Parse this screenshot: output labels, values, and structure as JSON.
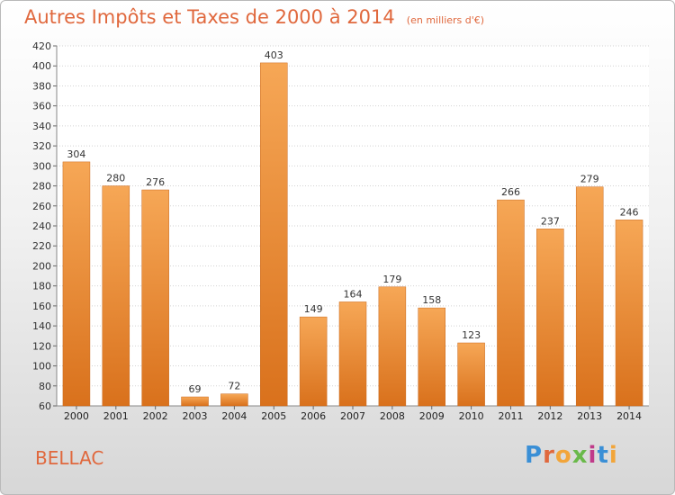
{
  "title": "Autres Impôts et Taxes de 2000 à 2014",
  "subtitle": "(en milliers d'€)",
  "place": "BELLAC",
  "logo": {
    "letters": [
      "P",
      "r",
      "o",
      "x",
      "i",
      "t",
      "i"
    ],
    "colors": [
      "#3a8fd6",
      "#e0683d",
      "#f2a53a",
      "#6ab94a",
      "#c03a8a",
      "#3a8fd6",
      "#f2a53a"
    ]
  },
  "colors": {
    "bar": "#ef8a2e",
    "title": "#e0683d"
  },
  "chart_data": {
    "type": "bar",
    "categories": [
      "2000",
      "2001",
      "2002",
      "2003",
      "2004",
      "2005",
      "2006",
      "2007",
      "2008",
      "2009",
      "2010",
      "2011",
      "2012",
      "2013",
      "2014"
    ],
    "values": [
      304,
      280,
      276,
      69,
      72,
      403,
      149,
      164,
      179,
      158,
      123,
      266,
      237,
      279,
      246
    ],
    "ylim": [
      60,
      420
    ],
    "yticks": [
      60,
      80,
      100,
      120,
      140,
      160,
      180,
      200,
      220,
      240,
      260,
      280,
      300,
      320,
      340,
      360,
      380,
      400,
      420
    ],
    "grid": true,
    "data_labels": true
  }
}
